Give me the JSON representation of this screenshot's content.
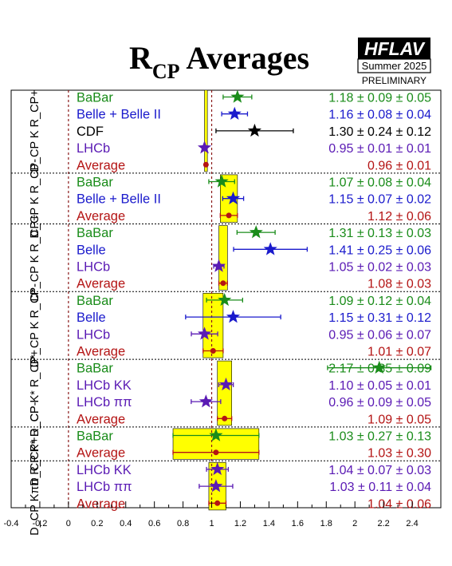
{
  "chart_data": {
    "type": "scatter",
    "title_main": "R",
    "title_sub": "CP",
    "title_rest": " Averages",
    "logo": {
      "text": "HFLAV",
      "season": "Summer 2025",
      "status": "PRELIMINARY"
    },
    "xlim": [
      -0.4,
      2.6
    ],
    "xticks": [
      "-0.4",
      "-0.2",
      "0",
      "0.2",
      "0.4",
      "0.6",
      "0.8",
      "1",
      "1.2",
      "1.4",
      "1.6",
      "1.8",
      "2",
      "2.2",
      "2.4"
    ],
    "reference_lines": [
      0,
      1
    ],
    "colors": {
      "green": "#1a8c1a",
      "blue": "#1a1acc",
      "black": "#000000",
      "purple": "#5a1ab4",
      "red": "#b41414",
      "band": "#ffff00"
    },
    "groups": [
      {
        "label": "D_CP K R_CP+",
        "average_band": [
          0.95,
          0.97
        ],
        "rows": [
          {
            "label": "BaBar",
            "value_text": "1.18 ± 0.09 ± 0.05",
            "x": 1.18,
            "err": 0.1,
            "color": "green",
            "marker": "star"
          },
          {
            "label": "Belle + Belle II",
            "value_text": "1.16 ± 0.08 ± 0.04",
            "x": 1.16,
            "err": 0.09,
            "color": "blue",
            "marker": "star"
          },
          {
            "label": "CDF",
            "value_text": "1.30 ± 0.24 ± 0.12",
            "x": 1.3,
            "err": 0.27,
            "color": "black",
            "marker": "star"
          },
          {
            "label": "LHCb",
            "value_text": "0.95 ± 0.01 ± 0.01",
            "x": 0.95,
            "err": 0.014,
            "color": "purple",
            "marker": "star"
          },
          {
            "label": "Average",
            "value_text": "0.96 ± 0.01",
            "x": 0.96,
            "err": 0.01,
            "color": "red",
            "marker": "dot"
          }
        ]
      },
      {
        "label": "D_CP K R_CP-",
        "average_band": [
          1.06,
          1.18
        ],
        "rows": [
          {
            "label": "BaBar",
            "value_text": "1.07 ± 0.08 ± 0.04",
            "x": 1.07,
            "err": 0.09,
            "color": "green",
            "marker": "star"
          },
          {
            "label": "Belle + Belle II",
            "value_text": "1.15 ± 0.07 ± 0.02",
            "x": 1.15,
            "err": 0.073,
            "color": "blue",
            "marker": "star"
          },
          {
            "label": "Average",
            "value_text": "1.12 ± 0.06",
            "x": 1.12,
            "err": 0.06,
            "color": "red",
            "marker": "dot"
          }
        ]
      },
      {
        "label": "D*_CP K R_CP+",
        "average_band": [
          1.05,
          1.11
        ],
        "rows": [
          {
            "label": "BaBar",
            "value_text": "1.31 ± 0.13 ± 0.03",
            "x": 1.31,
            "err": 0.133,
            "color": "green",
            "marker": "star"
          },
          {
            "label": "Belle",
            "value_text": "1.41 ± 0.25 ± 0.06",
            "x": 1.41,
            "err": 0.257,
            "color": "blue",
            "marker": "star"
          },
          {
            "label": "LHCb",
            "value_text": "1.05 ± 0.02 ± 0.03",
            "x": 1.05,
            "err": 0.036,
            "color": "purple",
            "marker": "star"
          },
          {
            "label": "Average",
            "value_text": "1.08 ± 0.03",
            "x": 1.08,
            "err": 0.03,
            "color": "red",
            "marker": "dot"
          }
        ]
      },
      {
        "label": "D*_CP K R_CP-",
        "average_band": [
          0.94,
          1.08
        ],
        "rows": [
          {
            "label": "BaBar",
            "value_text": "1.09 ± 0.12 ± 0.04",
            "x": 1.09,
            "err": 0.126,
            "color": "green",
            "marker": "star"
          },
          {
            "label": "Belle",
            "value_text": "1.15 ± 0.31 ± 0.12",
            "x": 1.15,
            "err": 0.332,
            "color": "blue",
            "marker": "star"
          },
          {
            "label": "LHCb",
            "value_text": "0.95 ± 0.06 ± 0.07",
            "x": 0.95,
            "err": 0.092,
            "color": "purple",
            "marker": "star"
          },
          {
            "label": "Average",
            "value_text": "1.01 ± 0.07",
            "x": 1.01,
            "err": 0.07,
            "color": "red",
            "marker": "dot"
          }
        ]
      },
      {
        "label": "D_CP K* R_CP+",
        "average_band": [
          1.04,
          1.14
        ],
        "rows": [
          {
            "label": "BaBar",
            "value_text": "2.17 ± 0.35 ± 0.09",
            "x": 2.17,
            "err": 0.361,
            "color": "green",
            "marker": "star"
          },
          {
            "label": "LHCb KK",
            "value_text": "1.10 ± 0.05 ± 0.01",
            "x": 1.1,
            "err": 0.051,
            "color": "purple",
            "marker": "star"
          },
          {
            "label": "LHCb ππ",
            "value_text": "0.96 ± 0.09 ± 0.05",
            "x": 0.96,
            "err": 0.103,
            "color": "purple",
            "marker": "star"
          },
          {
            "label": "Average",
            "value_text": "1.09 ± 0.05",
            "x": 1.09,
            "err": 0.05,
            "color": "red",
            "marker": "dot"
          }
        ]
      },
      {
        "label": "D_CP K* R_CP-",
        "average_band": [
          0.73,
          1.33
        ],
        "rows": [
          {
            "label": "BaBar",
            "value_text": "1.03 ± 0.27 ± 0.13",
            "x": 1.03,
            "err": 0.3,
            "color": "green",
            "marker": "star"
          },
          {
            "label": "Average",
            "value_text": "1.03 ± 0.30",
            "x": 1.03,
            "err": 0.3,
            "color": "red",
            "marker": "dot"
          }
        ]
      },
      {
        "label": "D_CP Kππ R_CP+",
        "average_band": [
          0.98,
          1.1
        ],
        "rows": [
          {
            "label": "LHCb KK",
            "value_text": "1.04 ± 0.07 ± 0.03",
            "x": 1.04,
            "err": 0.076,
            "color": "purple",
            "marker": "star"
          },
          {
            "label": "LHCb ππ",
            "value_text": "1.03 ± 0.11 ± 0.04",
            "x": 1.03,
            "err": 0.117,
            "color": "purple",
            "marker": "star"
          },
          {
            "label": "Average",
            "value_text": "1.04 ± 0.06",
            "x": 1.04,
            "err": 0.06,
            "color": "red",
            "marker": "dot"
          }
        ]
      }
    ]
  }
}
